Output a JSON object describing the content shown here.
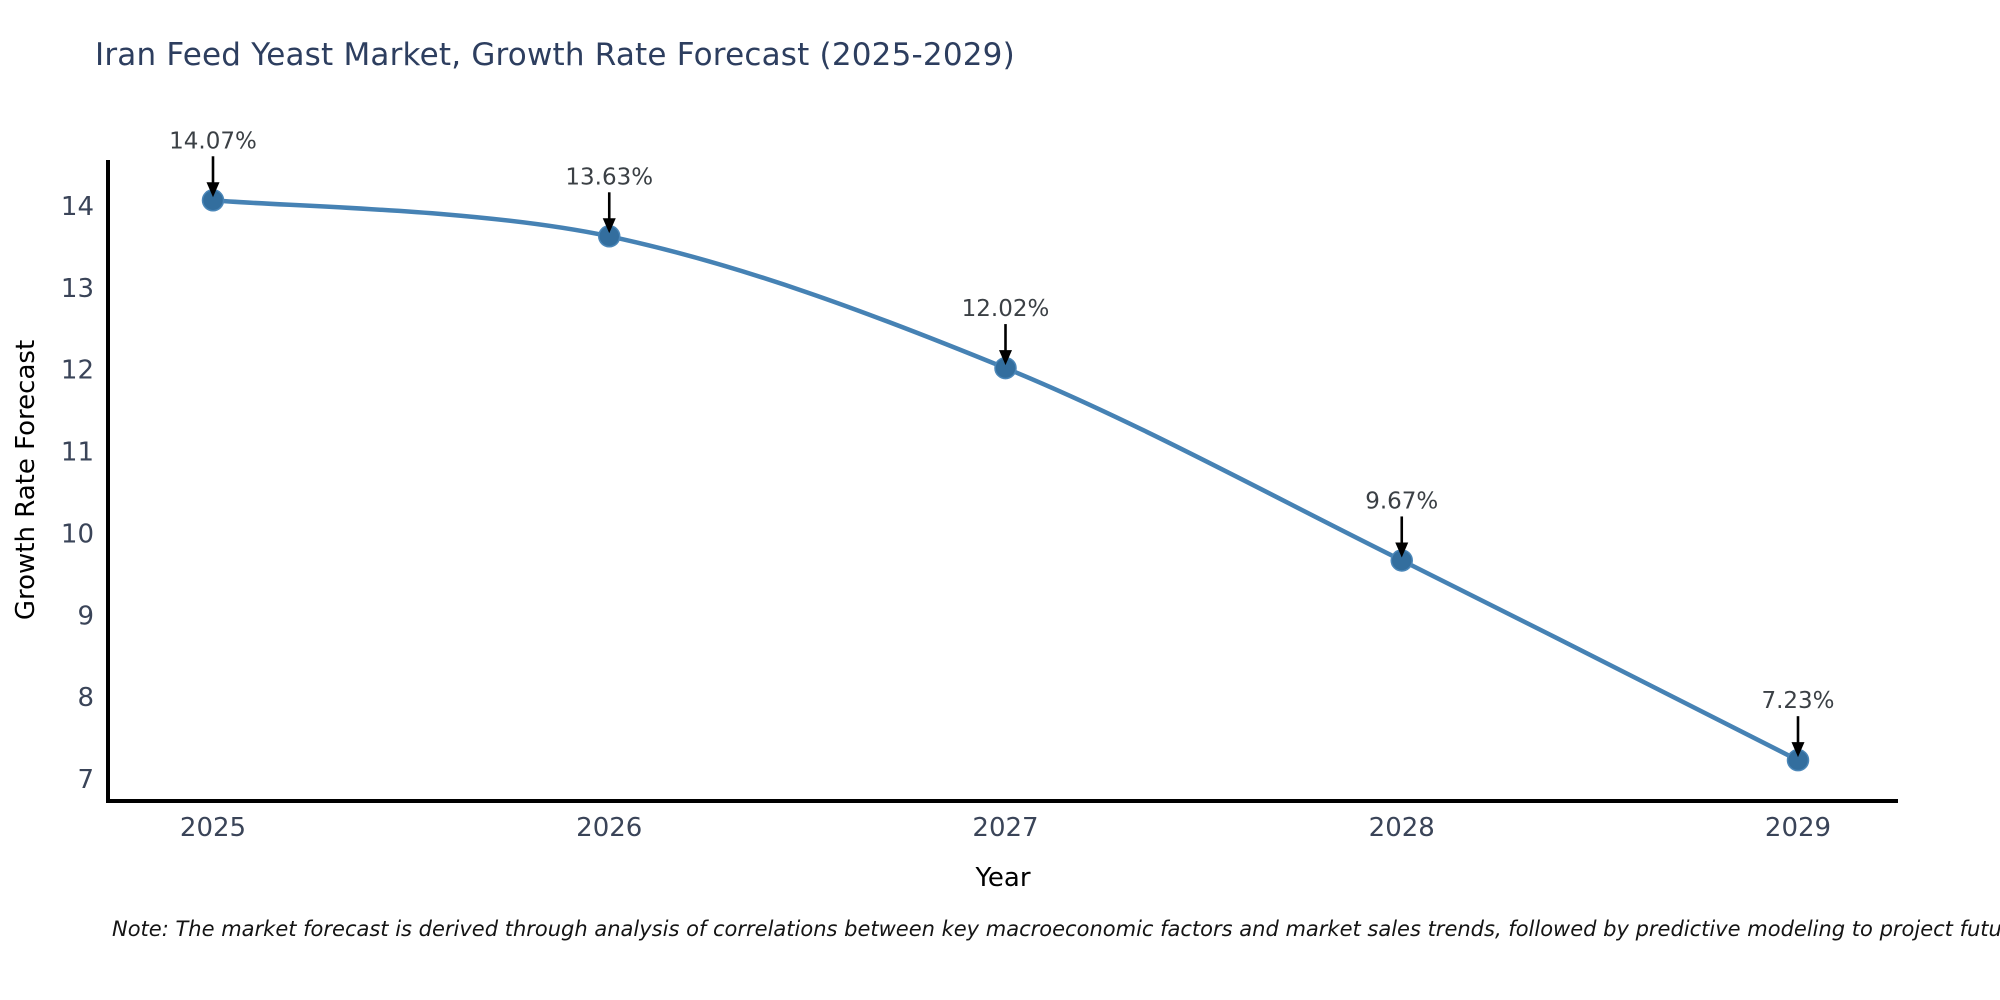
{
  "title": "Iran Feed Yeast Market, Growth Rate Forecast (2025-2029)",
  "note": "Note: The market forecast is derived through analysis of correlations between key macroeconomic factors and market sales trends, followed by predictive modeling to project future sales",
  "chart_data": {
    "type": "line",
    "title": "Iran Feed Yeast Market, Growth Rate Forecast (2025-2029)",
    "xlabel": "Year",
    "ylabel": "Growth Rate Forecast",
    "x": [
      2025,
      2026,
      2027,
      2028,
      2029
    ],
    "values": [
      14.07,
      13.63,
      12.02,
      9.67,
      7.23
    ],
    "point_labels": [
      "14.07%",
      "13.63%",
      "12.02%",
      "9.67%",
      "7.23%"
    ],
    "x_tick_labels": [
      "2025",
      "2026",
      "2027",
      "2028",
      "2029"
    ],
    "y_ticks": [
      7,
      8,
      9,
      10,
      11,
      12,
      13,
      14
    ],
    "ylim": [
      6.73,
      14.55
    ],
    "grid": false,
    "legend": "none",
    "marker_shape": "circle",
    "annotation_arrow": "down-arrow",
    "colors": {
      "line": "#4682b4",
      "marker": "#336e9e",
      "marker_edge": "#4a86b8",
      "arrow": "#000000",
      "axis": "#000000",
      "title": "#2d3e5f",
      "axis_label": "#2d3e5f",
      "tick_label": "#3a4458",
      "annotation_text": "#3b4045",
      "note_text": "#141414",
      "background": "#ffffff"
    }
  }
}
